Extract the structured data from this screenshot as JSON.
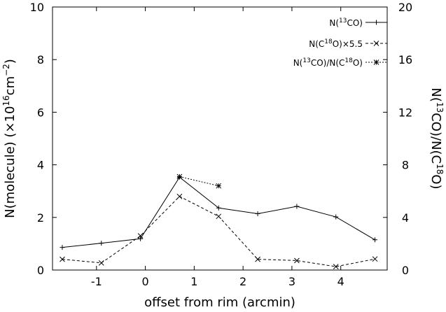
{
  "chart_data": {
    "type": "line",
    "xlabel": "offset from rim (arcmin)",
    "ylabel_left": "N(molecule) (×10^16cm^-2)",
    "ylabel_left_parts": {
      "main": "N(molecule) (×10",
      "exp1": "16",
      "mid": "cm",
      "exp2": "−2",
      "end": ")"
    },
    "ylabel_right": "N(13CO)/N(C18O)",
    "ylabel_right_parts": {
      "p1": "N(",
      "sup1": "13",
      "p2": "CO)/N(C",
      "sup2": "18",
      "p3": "O)"
    },
    "xlim": [
      -1.9,
      4.95
    ],
    "ylim_left": [
      0,
      10
    ],
    "ylim_right": [
      0,
      20
    ],
    "x_ticks": [
      -1,
      0,
      1,
      2,
      3,
      4
    ],
    "x_tick_labels": [
      "-1",
      "0",
      "1",
      "2",
      "3",
      "4"
    ],
    "y_left_ticks": [
      0,
      2,
      4,
      6,
      8,
      10
    ],
    "y_left_tick_labels": [
      "0",
      "2",
      "4",
      "6",
      "8",
      "10"
    ],
    "y_right_ticks": [
      0,
      4,
      8,
      12,
      16,
      20
    ],
    "y_right_tick_labels": [
      "0",
      "4",
      "8",
      "12",
      "16",
      "20"
    ],
    "grid": false,
    "legend_position": "top-right",
    "series": [
      {
        "name": "N(13CO)",
        "legend_parts": {
          "pre": "N(",
          "sup": "13",
          "post": "CO)"
        },
        "axis": "left",
        "marker": "plus",
        "line": "solid",
        "x": [
          -1.7,
          -0.9,
          -0.1,
          0.7,
          1.5,
          2.3,
          3.1,
          3.9,
          4.7
        ],
        "y": [
          0.86,
          1.02,
          1.19,
          3.53,
          2.36,
          2.14,
          2.42,
          2.02,
          1.15
        ]
      },
      {
        "name": "N(C18O)×5.5",
        "legend_parts": {
          "pre": "N(C",
          "sup": "18",
          "post": "O)×5.5"
        },
        "axis": "left",
        "marker": "cross",
        "line": "dashed",
        "x": [
          -1.7,
          -0.9,
          -0.1,
          0.7,
          1.5,
          2.3,
          3.1,
          3.9,
          4.7
        ],
        "y": [
          0.41,
          0.27,
          1.3,
          2.8,
          2.04,
          0.41,
          0.36,
          0.13,
          0.42
        ]
      },
      {
        "name": "N(13CO)/N(C18O)",
        "legend_parts": {
          "pre": "N(",
          "sup": "13",
          "mid": "CO)/N(C",
          "sup2": "18",
          "post": "O)"
        },
        "axis": "right",
        "marker": "star",
        "line": "dotted",
        "x": [
          0.7,
          1.5
        ],
        "y": [
          7.1,
          6.4
        ]
      }
    ]
  }
}
